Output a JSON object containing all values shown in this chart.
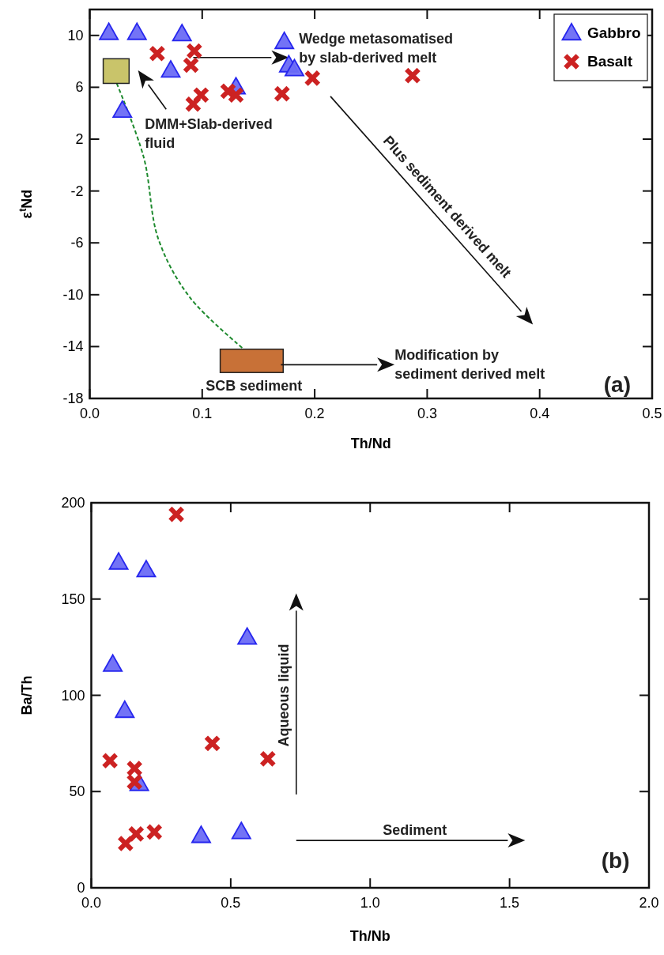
{
  "chart_data": [
    {
      "type": "scatter",
      "xlabel": "Th/Nd",
      "ylabel": "ε$^{t}$Nd",
      "xlim": [
        0,
        0.5
      ],
      "ylim": [
        -18,
        12
      ],
      "xticks": [
        {
          "value": 0,
          "label": "0.0"
        },
        0.1,
        0.2,
        0.3,
        0.4,
        0.5
      ],
      "yticks": [
        -18,
        -14,
        -10,
        -6,
        -2,
        2,
        6,
        10
      ],
      "legend": "top right",
      "grid": false,
      "series": [
        {
          "name": "Gabbro",
          "color": "#6b6bf5",
          "marker": "triangle",
          "x": [
            0.017,
            0.042,
            0.082,
            0.072,
            0.029,
            0.13,
            0.173,
            0.177,
            0.182
          ],
          "values": [
            10.2,
            10.2,
            10.1,
            7.3,
            4.2,
            6.0,
            9.5,
            7.7,
            7.4
          ]
        },
        {
          "type": "line",
          "color": "#1e8a2e",
          "line_style": "dashed",
          "x": [
            0.024,
            0.048,
            0.061,
            0.089,
            0.137
          ],
          "values": [
            6.3,
            0.6,
            -5.7,
            -10.2,
            -14.2
          ]
        },
        {
          "name": "Basalt",
          "color": "#cc2222",
          "marker": "cross",
          "x": [
            0.06,
            0.093,
            0.09,
            0.099,
            0.092,
            0.123,
            0.13,
            0.171,
            0.198,
            0.287
          ],
          "values": [
            8.6,
            8.8,
            7.7,
            5.4,
            4.7,
            5.7,
            5.4,
            5.5,
            6.7,
            6.9
          ]
        }
      ],
      "annotations": [
        "Wedge metasomatised by slab-derived melt",
        "DMM+Slab-derived fluid",
        "Plus sediment derived melt",
        "Modification by sediment derived melt",
        "SCB sediment",
        "(a)"
      ]
    },
    {
      "type": "scatter",
      "xlabel": "Th/Nb",
      "ylabel": "Ba/Th",
      "xlim": [
        0,
        2
      ],
      "ylim": [
        0,
        200
      ],
      "xticks": [
        {
          "value": 0,
          "label": "0.0"
        },
        0.5,
        {
          "value": 1,
          "label": "1.0"
        },
        1.5,
        {
          "value": 2,
          "label": "2.0"
        }
      ],
      "yticks": [
        0,
        50,
        100,
        150,
        200
      ],
      "grid": false,
      "series": [
        {
          "color": "#6b6bf5",
          "marker": "triangle",
          "x": [
            0.098,
            0.197,
            0.559,
            0.077,
            0.12,
            0.172,
            0.394,
            0.538
          ],
          "values": [
            169,
            165,
            130,
            116,
            92,
            54,
            27,
            29
          ]
        },
        {
          "color": "#cc2222",
          "marker": "cross",
          "x": [
            0.305,
            0.067,
            0.155,
            0.155,
            0.434,
            0.633,
            0.123,
            0.161,
            0.226
          ],
          "values": [
            194,
            66,
            62,
            55,
            75,
            67,
            23,
            28,
            29
          ]
        }
      ],
      "annotations": [
        "Aqueous liquid",
        "Sediment",
        "(b)"
      ]
    }
  ]
}
